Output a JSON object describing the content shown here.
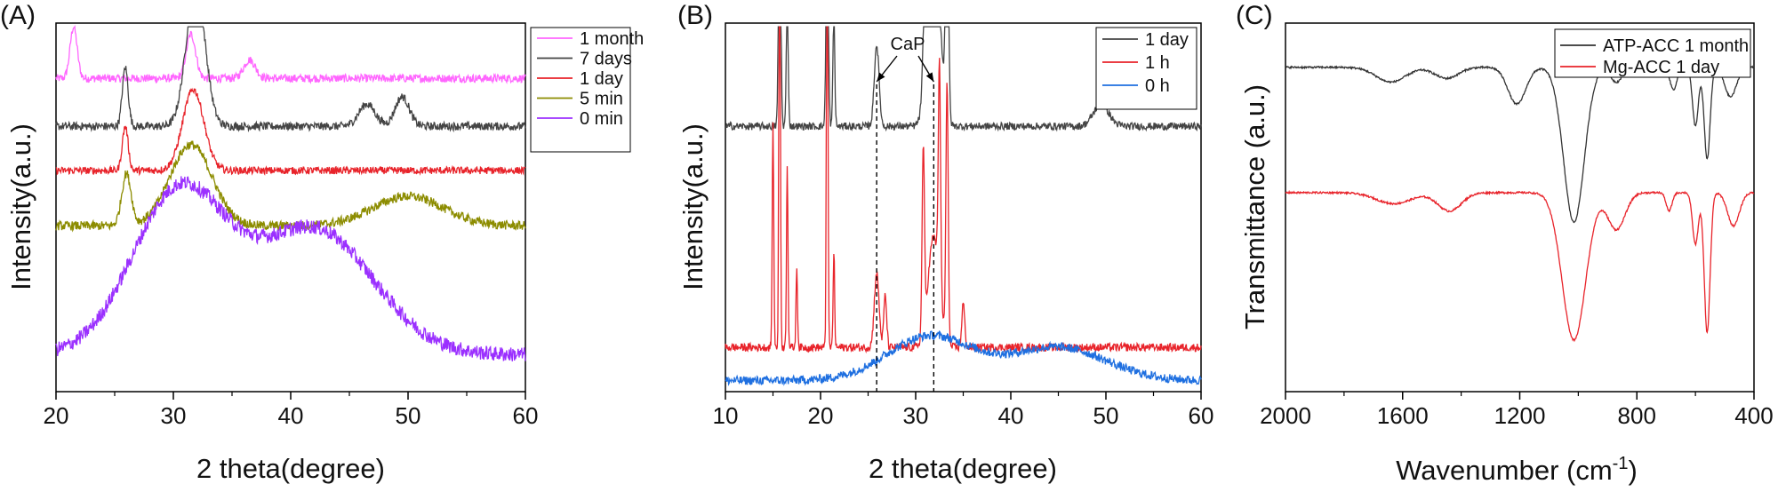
{
  "chart_data": [
    {
      "panel_label": "(A)",
      "type": "line",
      "title": "",
      "xlabel": "2 theta(degree)",
      "ylabel": "Intensity(a.u.)",
      "xlim": [
        20,
        60
      ],
      "xticks": [
        "20",
        "30",
        "40",
        "50",
        "60"
      ],
      "yticks_visible": false,
      "legend_position": "top-right",
      "series": [
        {
          "name": "1 month",
          "color": "#ff66ff",
          "offset": 85,
          "noise": 2.2,
          "shape": "flat",
          "peaks": [
            [
              21.5,
              0.3,
              14
            ],
            [
              31.5,
              0.4,
              12
            ],
            [
              36.5,
              0.5,
              5
            ]
          ]
        },
        {
          "name": "7 days",
          "color": "#444444",
          "offset": 72,
          "noise": 2.2,
          "shape": "flat",
          "peaks": [
            [
              25.9,
              0.25,
              16
            ],
            [
              31.9,
              0.8,
              38
            ],
            [
              46.5,
              0.7,
              6
            ],
            [
              49.5,
              0.6,
              8
            ]
          ]
        },
        {
          "name": "1 day",
          "color": "#e8232a",
          "offset": 60,
          "noise": 2.0,
          "shape": "flat",
          "peaks": [
            [
              25.9,
              0.25,
              12
            ],
            [
              31.7,
              0.9,
              22
            ]
          ]
        },
        {
          "name": "5 min",
          "color": "#8c8c00",
          "offset": 45,
          "noise": 2.5,
          "shape": "flat",
          "peaks": [
            [
              26.0,
              0.4,
              14
            ],
            [
              31.5,
              1.8,
              22
            ],
            [
              50.0,
              3.0,
              8
            ]
          ]
        },
        {
          "name": "0 min",
          "color": "#9b30ff",
          "offset": 10,
          "noise": 4.0,
          "shape": "amorphous",
          "peaks": [
            [
              30.5,
              4.0,
              44
            ],
            [
              42.0,
              5.0,
              34
            ]
          ]
        }
      ]
    },
    {
      "panel_label": "(B)",
      "type": "line",
      "title": "",
      "xlabel": "2 theta(degree)",
      "ylabel": "Intensity(a.u.)",
      "xlim": [
        10,
        60
      ],
      "xticks": [
        "10",
        "20",
        "30",
        "40",
        "50",
        "60"
      ],
      "yticks_visible": false,
      "legend_position": "top-right",
      "annotation": {
        "text": "CaP",
        "positions": [
          25.9,
          31.9
        ]
      },
      "series": [
        {
          "name": "1 day",
          "color": "#444444",
          "offset": 72,
          "noise": 2.0,
          "shape": "flat",
          "peaks": [
            [
              15.7,
              0.12,
              70
            ],
            [
              16.5,
              0.1,
              36
            ],
            [
              20.7,
              0.12,
              60
            ],
            [
              21.4,
              0.1,
              30
            ],
            [
              25.9,
              0.25,
              22
            ],
            [
              31.0,
              0.2,
              24
            ],
            [
              31.9,
              0.6,
              60
            ],
            [
              33.3,
              0.15,
              70
            ],
            [
              49.5,
              0.8,
              6
            ]
          ]
        },
        {
          "name": "1 h",
          "color": "#e8232a",
          "offset": 12,
          "noise": 2.2,
          "shape": "flat",
          "peaks": [
            [
              15.0,
              0.08,
              60
            ],
            [
              15.7,
              0.08,
              120
            ],
            [
              16.5,
              0.08,
              50
            ],
            [
              17.5,
              0.08,
              22
            ],
            [
              20.7,
              0.08,
              120
            ],
            [
              21.4,
              0.08,
              26
            ],
            [
              25.9,
              0.25,
              20
            ],
            [
              26.8,
              0.15,
              14
            ],
            [
              30.8,
              0.12,
              50
            ],
            [
              31.9,
              0.6,
              30
            ],
            [
              32.5,
              0.12,
              60
            ],
            [
              33.3,
              0.12,
              70
            ],
            [
              35.0,
              0.15,
              12
            ]
          ]
        },
        {
          "name": "0 h",
          "color": "#1e6fe0",
          "offset": 3,
          "noise": 2.4,
          "shape": "flat",
          "peaks": [
            [
              31.5,
              4.5,
              12
            ],
            [
              45.0,
              5.0,
              9
            ]
          ]
        }
      ]
    },
    {
      "panel_label": "(C)",
      "type": "line",
      "title": "",
      "xlabel": "Wavenumber (cm",
      "xlabel_sup": "-1",
      "xlabel_close": ")",
      "ylabel": "Transmittance (a.u.)",
      "xlim": [
        2000,
        400
      ],
      "xticks": [
        "2000",
        "1600",
        "1200",
        "800",
        "400"
      ],
      "yticks_visible": false,
      "legend_position": "top-right",
      "series": [
        {
          "name": "ATP-ACC 1 month",
          "color": "#333333",
          "offset": 88,
          "noise": 0.5,
          "bands": [
            [
              1640,
              50,
              4
            ],
            [
              1450,
              40,
              3
            ],
            [
              1210,
              30,
              10
            ],
            [
              1015,
              35,
              42
            ],
            [
              870,
              20,
              4
            ],
            [
              675,
              12,
              6
            ],
            [
              600,
              10,
              16
            ],
            [
              560,
              10,
              25
            ],
            [
              480,
              20,
              8
            ]
          ]
        },
        {
          "name": "Mg-ACC 1 day",
          "color": "#e8232a",
          "offset": 54,
          "noise": 0.5,
          "bands": [
            [
              1630,
              60,
              3
            ],
            [
              1440,
              40,
              5
            ],
            [
              1015,
              40,
              40
            ],
            [
              870,
              30,
              10
            ],
            [
              690,
              10,
              5
            ],
            [
              600,
              10,
              14
            ],
            [
              560,
              10,
              38
            ],
            [
              470,
              20,
              9
            ]
          ]
        }
      ]
    }
  ]
}
